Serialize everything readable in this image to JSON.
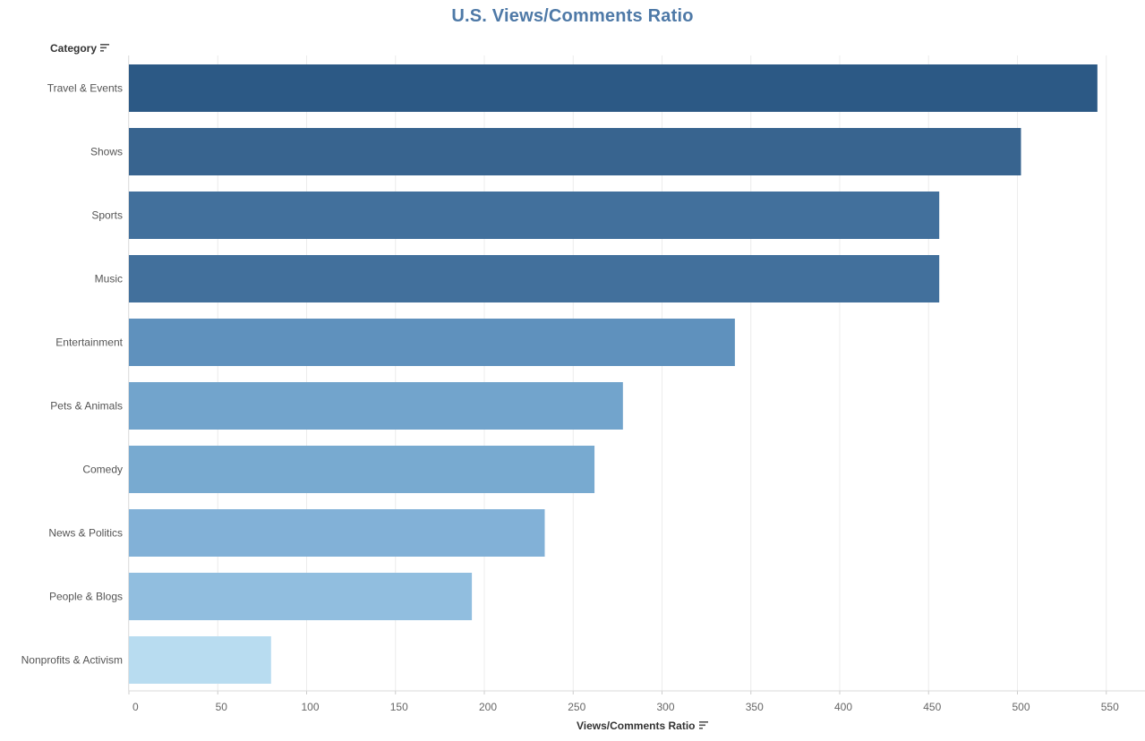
{
  "chart_data": {
    "type": "bar",
    "orientation": "horizontal",
    "title": "U.S. Views/Comments Ratio",
    "ylabel": "Category",
    "xlabel": "Views/Comments Ratio",
    "categories": [
      "Travel & Events",
      "Shows",
      "Sports",
      "Music",
      "Entertainment",
      "Pets & Animals",
      "Comedy",
      "News & Politics",
      "People & Blogs",
      "Nonprofits & Activism"
    ],
    "values": [
      545,
      502,
      456,
      456,
      341,
      278,
      262,
      234,
      193,
      80
    ],
    "bar_colors": [
      "#2c5985",
      "#38648f",
      "#42709c",
      "#42709c",
      "#5f91bd",
      "#72a4cc",
      "#78aad0",
      "#82b1d7",
      "#91bedf",
      "#b8dcf0"
    ],
    "xlim": [
      0,
      570
    ],
    "xticks": [
      0,
      50,
      100,
      150,
      200,
      250,
      300,
      350,
      400,
      450,
      500,
      550
    ],
    "grid": "vertical",
    "legend": "none"
  },
  "colors": {
    "title": "#4e79a7",
    "grid": "#ececec",
    "axis_text": "#666666"
  },
  "icons": {
    "category_sort": "sort-descending-icon",
    "measure_sort": "sort-descending-icon"
  }
}
